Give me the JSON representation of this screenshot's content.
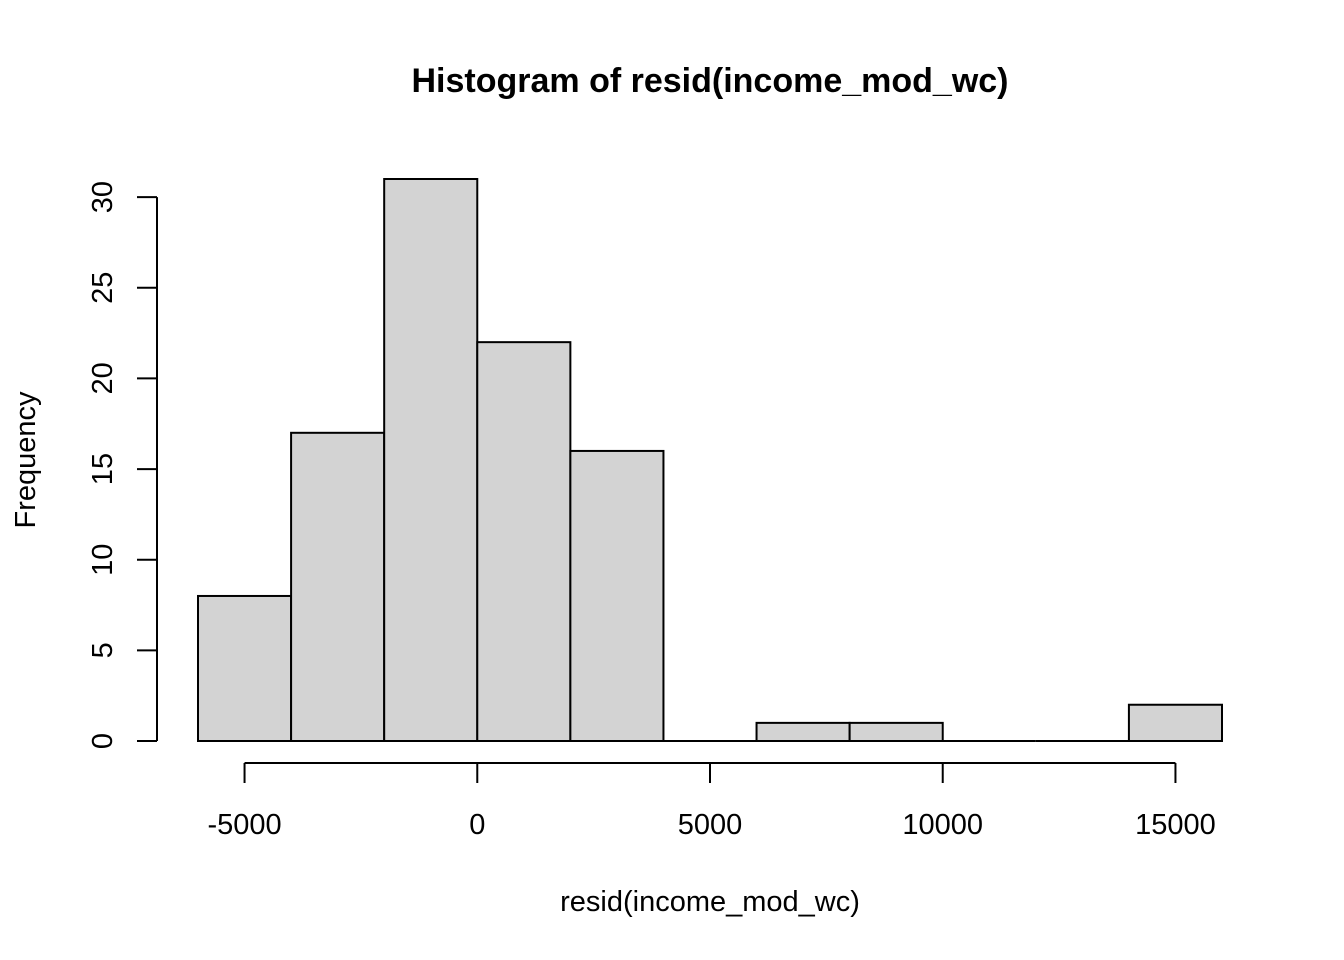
{
  "chart_data": {
    "type": "bar",
    "title": "Histogram of resid(income_mod_wc)",
    "xlabel": "resid(income_mod_wc)",
    "ylabel": "Frequency",
    "bins": [
      {
        "start": -6000,
        "end": -4000,
        "count": 8
      },
      {
        "start": -4000,
        "end": -2000,
        "count": 17
      },
      {
        "start": -2000,
        "end": 0,
        "count": 31
      },
      {
        "start": 0,
        "end": 2000,
        "count": 22
      },
      {
        "start": 2000,
        "end": 4000,
        "count": 16
      },
      {
        "start": 4000,
        "end": 6000,
        "count": 0
      },
      {
        "start": 6000,
        "end": 8000,
        "count": 1
      },
      {
        "start": 8000,
        "end": 10000,
        "count": 1
      },
      {
        "start": 10000,
        "end": 12000,
        "count": 0
      },
      {
        "start": 12000,
        "end": 14000,
        "count": 0
      },
      {
        "start": 14000,
        "end": 16000,
        "count": 2
      }
    ],
    "xticks": [
      -5000,
      0,
      5000,
      10000,
      15000
    ],
    "yticks": [
      0,
      5,
      10,
      15,
      20,
      25,
      30
    ],
    "xlim": [
      -6000,
      16000
    ],
    "ylim": [
      0,
      31
    ],
    "bar_fill": "#d3d3d3",
    "bar_stroke": "#000000",
    "grid": false,
    "legend": "none"
  }
}
